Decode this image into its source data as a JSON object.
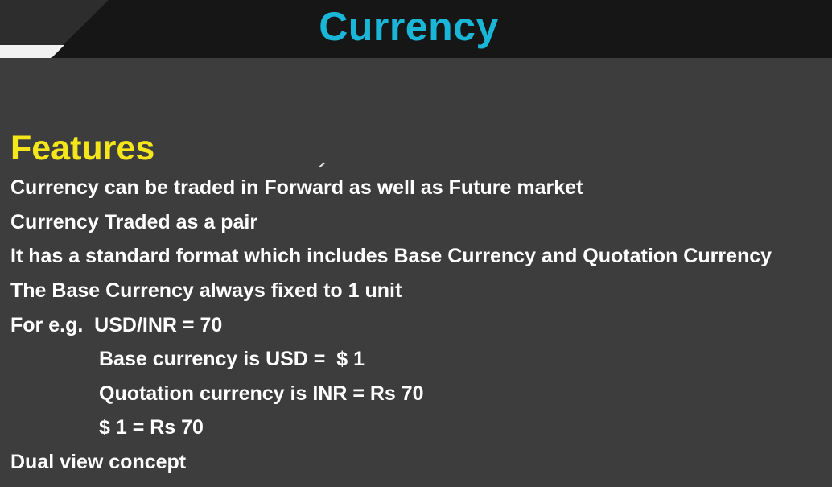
{
  "slide": {
    "title": "Currency",
    "heading": "Features",
    "lines": [
      "Currency can be traded in Forward as well as Future market",
      "Currency Traded as a pair",
      "It has a standard format which includes Base Currency and Quotation Currency",
      "The Base Currency always fixed to 1 unit",
      "For e.g.  USD/INR = 70",
      "Base currency is USD =  $ 1",
      "Quotation currency is INR = Rs 70",
      "$ 1 = Rs 70",
      "Dual view concept"
    ]
  },
  "colors": {
    "background": "#3d3d3d",
    "header_bar": "#161616",
    "title": "#1ab6d8",
    "heading": "#f4e61a",
    "body_text": "#ffffff"
  }
}
